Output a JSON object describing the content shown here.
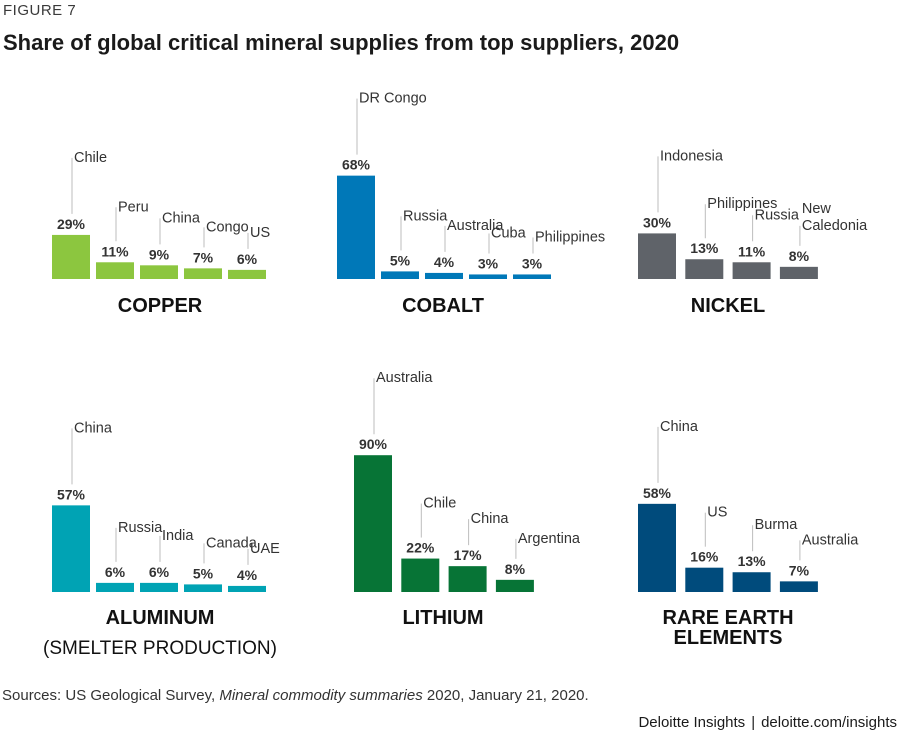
{
  "header": {
    "figure_label": "FIGURE 7",
    "title": "Share of global critical mineral supplies from top suppliers, 2020"
  },
  "footer": {
    "sources_prefix": "Sources: US Geological Survey, ",
    "sources_italic": "Mineral commodity summaries",
    "sources_suffix": " 2020, January 21, 2020.",
    "brand": "Deloitte Insights",
    "brand_separator": "|",
    "url": "deloitte.com/insights"
  },
  "chart_data": [
    {
      "type": "bar",
      "title": "COPPER",
      "subtitle": "",
      "color": "#8cc63f",
      "categories": [
        "Chile",
        "Peru",
        "China",
        "Congo",
        "US"
      ],
      "values": [
        29,
        11,
        9,
        7,
        6
      ],
      "value_labels": [
        "29%",
        "11%",
        "9%",
        "7%",
        "6%"
      ],
      "unit": "%"
    },
    {
      "type": "bar",
      "title": "COBALT",
      "subtitle": "",
      "color": "#0078b8",
      "categories": [
        "DR Congo",
        "Russia",
        "Australia",
        "Cuba",
        "Philippines"
      ],
      "values": [
        68,
        5,
        4,
        3,
        3
      ],
      "value_labels": [
        "68%",
        "5%",
        "4%",
        "3%",
        "3%"
      ],
      "unit": "%"
    },
    {
      "type": "bar",
      "title": "NICKEL",
      "subtitle": "",
      "color": "#5f6369",
      "categories": [
        "Indonesia",
        "Philippines",
        "Russia",
        "New Caledonia"
      ],
      "values": [
        30,
        13,
        11,
        8
      ],
      "value_labels": [
        "30%",
        "13%",
        "11%",
        "8%"
      ],
      "unit": "%"
    },
    {
      "type": "bar",
      "title": "ALUMINUM",
      "subtitle": "(SMELTER PRODUCTION)",
      "color": "#00a3b4",
      "categories": [
        "China",
        "Russia",
        "India",
        "Canada",
        "UAE"
      ],
      "values": [
        57,
        6,
        6,
        5,
        4
      ],
      "value_labels": [
        "57%",
        "6%",
        "6%",
        "5%",
        "4%"
      ],
      "unit": "%"
    },
    {
      "type": "bar",
      "title": "LITHIUM",
      "subtitle": "",
      "color": "#077436",
      "categories": [
        "Australia",
        "Chile",
        "China",
        "Argentina"
      ],
      "values": [
        90,
        22,
        17,
        8
      ],
      "value_labels": [
        "90%",
        "22%",
        "17%",
        "8%"
      ],
      "unit": "%"
    },
    {
      "type": "bar",
      "title": "RARE EARTH ELEMENTS",
      "subtitle": "",
      "color": "#004b7c",
      "categories": [
        "China",
        "US",
        "Burma",
        "Australia"
      ],
      "values": [
        58,
        16,
        13,
        7
      ],
      "value_labels": [
        "58%",
        "16%",
        "13%",
        "7%"
      ],
      "unit": "%"
    }
  ]
}
